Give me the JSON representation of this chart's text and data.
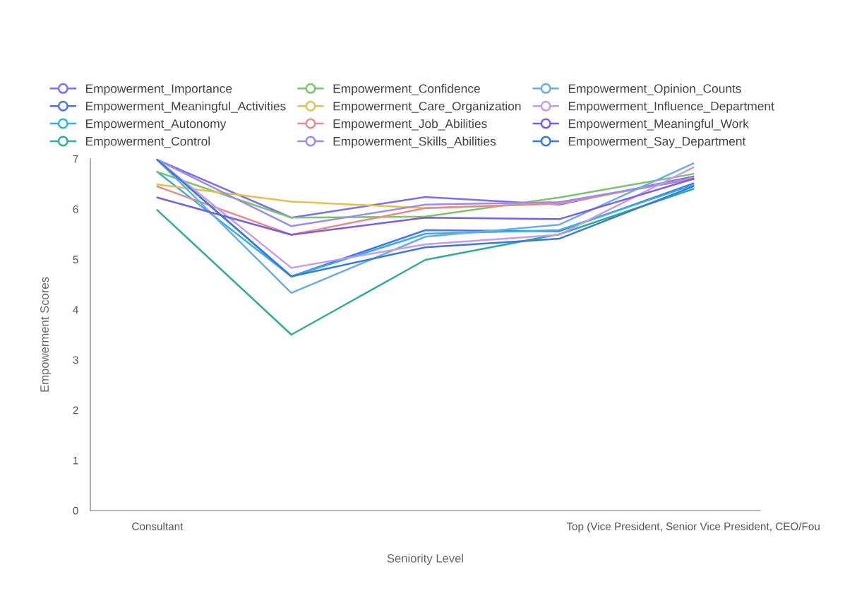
{
  "chart_data": {
    "type": "line",
    "xlabel": "Seniority Level",
    "ylabel": "Empowerment Scores",
    "categories": [
      "Consultant",
      null,
      null,
      null,
      "Top (Vice President, Senior Vice President, CEO/Fou"
    ],
    "ylim": [
      0,
      7
    ],
    "yticks": [
      0,
      1,
      2,
      3,
      4,
      5,
      6,
      7
    ],
    "grid": false,
    "legend": "top",
    "series": [
      {
        "name": "Empowerment_Importance",
        "color": "#7b6ef0",
        "values": [
          6.98,
          5.83,
          6.24,
          6.09,
          6.65
        ]
      },
      {
        "name": "Empowerment_Meaningful_Activities",
        "color": "#4a72f0",
        "values": [
          6.98,
          4.66,
          5.58,
          5.56,
          6.51
        ]
      },
      {
        "name": "Empowerment_Autonomy",
        "color": "#2fb2e0",
        "values": [
          6.74,
          4.66,
          5.51,
          5.58,
          6.48
        ]
      },
      {
        "name": "Empowerment_Control",
        "color": "#2fae95",
        "values": [
          5.98,
          3.5,
          4.99,
          5.5,
          6.4
        ]
      },
      {
        "name": "Empowerment_Confidence",
        "color": "#7cc46a",
        "values": [
          6.74,
          5.83,
          5.85,
          6.23,
          6.7
        ]
      },
      {
        "name": "Empowerment_Care_Organization",
        "color": "#e6c04a",
        "values": [
          6.49,
          6.15,
          6.02,
          6.11,
          6.6
        ]
      },
      {
        "name": "Empowerment_Job_Abilities",
        "color": "#e88a8a",
        "values": [
          6.45,
          5.49,
          6.02,
          6.11,
          6.62
        ]
      },
      {
        "name": "Empowerment_Skills_Abilities",
        "color": "#9b8cf0",
        "values": [
          6.98,
          5.66,
          6.09,
          6.14,
          6.6
        ]
      },
      {
        "name": "Empowerment_Opinion_Counts",
        "color": "#6aaee0",
        "values": [
          6.98,
          4.33,
          5.45,
          5.69,
          6.91
        ]
      },
      {
        "name": "Empowerment_Influence_Department",
        "color": "#c79be8",
        "values": [
          6.98,
          4.83,
          5.3,
          5.49,
          6.83
        ]
      },
      {
        "name": "Empowerment_Meaningful_Work",
        "color": "#7a5ce6",
        "values": [
          6.23,
          5.49,
          5.83,
          5.8,
          6.6
        ]
      },
      {
        "name": "Empowerment_Say_Department",
        "color": "#3a78e0",
        "values": [
          6.98,
          4.66,
          5.24,
          5.41,
          6.45
        ]
      }
    ]
  }
}
